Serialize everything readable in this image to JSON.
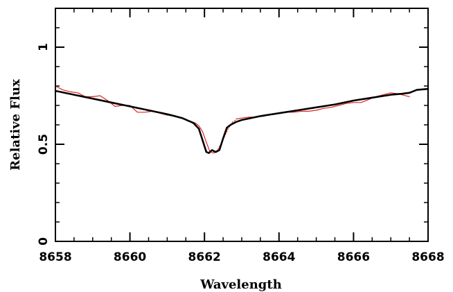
{
  "chart_data": {
    "type": "line",
    "xlabel": "Wavelength",
    "ylabel": "Relative Flux",
    "xlim": [
      8658,
      8668
    ],
    "ylim": [
      0,
      1.2
    ],
    "x_ticks": [
      8658,
      8660,
      8662,
      8664,
      8666,
      8668
    ],
    "x_tick_labels": [
      "8658",
      "8660",
      "8662",
      "8664",
      "8666",
      "8668"
    ],
    "y_ticks": [
      0,
      0.5,
      1
    ],
    "y_tick_labels": [
      "0",
      "0.5",
      "1"
    ],
    "x_minor_step": 0.5,
    "y_minor_step": 0.1,
    "grid": false,
    "series": [
      {
        "style": "observed",
        "color": "#e02020",
        "dash": "solid",
        "x": [
          8658.0,
          8658.2,
          8658.4,
          8658.6,
          8658.8,
          8659.0,
          8659.2,
          8659.4,
          8659.6,
          8659.8,
          8660.0,
          8660.2,
          8660.4,
          8660.6,
          8660.8,
          8661.0,
          8661.2,
          8661.4,
          8661.6,
          8661.75,
          8661.85,
          8661.95,
          8662.05,
          8662.15,
          8662.25
        ],
        "y": [
          0.8,
          0.78,
          0.77,
          0.765,
          0.745,
          0.745,
          0.75,
          0.725,
          0.695,
          0.7,
          0.7,
          0.665,
          0.665,
          0.67,
          0.66,
          0.65,
          0.645,
          0.635,
          0.62,
          0.61,
          0.595,
          0.565,
          0.51,
          0.46,
          0.455
        ]
      },
      {
        "style": "observed-dotted",
        "color": "#e02020",
        "dash": "dotted",
        "x": [
          8662.25,
          8662.35,
          8662.45,
          8662.55,
          8662.65,
          8662.75,
          8662.85
        ],
        "y": [
          0.455,
          0.47,
          0.505,
          0.545,
          0.585,
          0.615,
          0.625
        ]
      },
      {
        "style": "observed-2",
        "color": "#e02020",
        "dash": "solid",
        "x": [
          8662.85,
          8663.0,
          8663.2,
          8663.4,
          8663.6,
          8663.8,
          8664.0,
          8664.2,
          8664.4,
          8664.6,
          8664.8,
          8665.0,
          8665.2,
          8665.4,
          8665.6,
          8665.8,
          8666.0,
          8666.2,
          8666.4,
          8666.6,
          8666.8,
          8667.0,
          8667.2,
          8667.5
        ],
        "y": [
          0.63,
          0.635,
          0.64,
          0.64,
          0.645,
          0.655,
          0.66,
          0.665,
          0.665,
          0.67,
          0.67,
          0.675,
          0.685,
          0.69,
          0.7,
          0.71,
          0.715,
          0.715,
          0.73,
          0.745,
          0.755,
          0.765,
          0.76,
          0.745
        ]
      },
      {
        "style": "model",
        "color": "#000000",
        "dash": "solid",
        "x": [
          8658.0,
          8658.5,
          8659.0,
          8659.5,
          8660.0,
          8660.5,
          8661.0,
          8661.4,
          8661.7,
          8661.85,
          8661.95,
          8662.05,
          8662.12,
          8662.2,
          8662.3,
          8662.4,
          8662.5,
          8662.6,
          8662.7,
          8662.85,
          8663.0,
          8663.5,
          8664.0,
          8664.5,
          8665.0,
          8665.5,
          8666.0,
          8666.5,
          8667.0,
          8667.3,
          8667.5,
          8667.7,
          8668.0
        ],
        "y": [
          0.775,
          0.755,
          0.735,
          0.715,
          0.695,
          0.675,
          0.655,
          0.635,
          0.61,
          0.58,
          0.52,
          0.46,
          0.455,
          0.47,
          0.46,
          0.47,
          0.53,
          0.585,
          0.6,
          0.615,
          0.625,
          0.645,
          0.66,
          0.675,
          0.69,
          0.705,
          0.725,
          0.74,
          0.755,
          0.76,
          0.765,
          0.78,
          0.785
        ]
      }
    ]
  }
}
